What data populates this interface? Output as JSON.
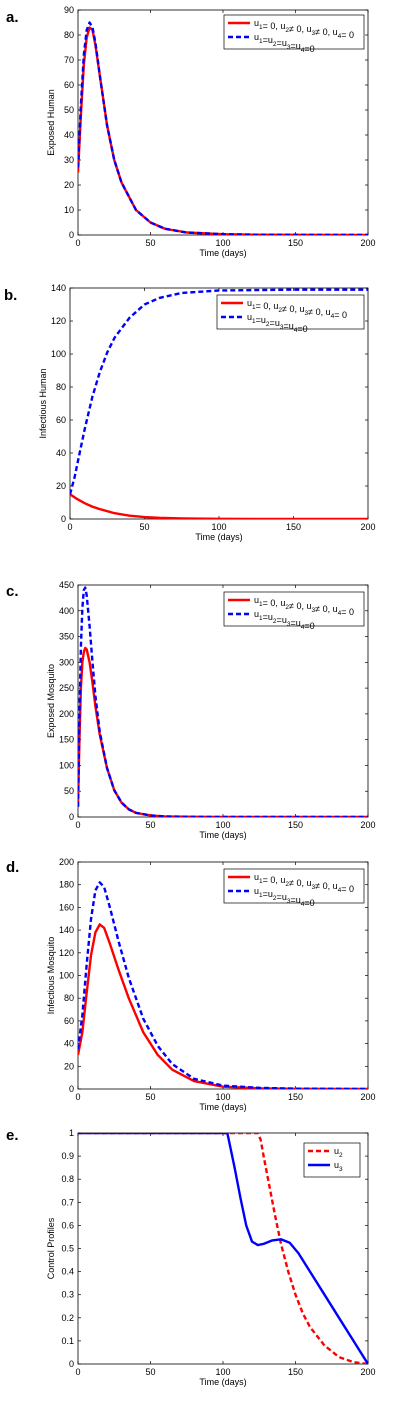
{
  "chart_data": [
    {
      "type": "line",
      "panel_label": "a.",
      "xlabel": "Time (days)",
      "ylabel": "Exposed Human",
      "xlim": [
        0,
        200
      ],
      "ylim": [
        0,
        90
      ],
      "xticks": [
        0,
        50,
        100,
        150,
        200
      ],
      "yticks": [
        0,
        10,
        20,
        30,
        40,
        50,
        60,
        70,
        80,
        90
      ],
      "legend_position": "top-right",
      "series": [
        {
          "name": "u1= 0, u2≠ 0, u3≠ 0, u4= 0",
          "color": "#ff0000",
          "dash": "solid",
          "points": [
            [
              0,
              25
            ],
            [
              2,
              48
            ],
            [
              4,
              68
            ],
            [
              6,
              79
            ],
            [
              8,
              83
            ],
            [
              10,
              82
            ],
            [
              12,
              76
            ],
            [
              15,
              64
            ],
            [
              20,
              44
            ],
            [
              25,
              30
            ],
            [
              30,
              21
            ],
            [
              40,
              10
            ],
            [
              50,
              5
            ],
            [
              60,
              2.5
            ],
            [
              75,
              1
            ],
            [
              100,
              0.3
            ],
            [
              125,
              0.1
            ],
            [
              150,
              0.05
            ],
            [
              200,
              0
            ]
          ]
        },
        {
          "name": "u1=u2=u3=u4=0",
          "color": "#0000ff",
          "dash": "dashed",
          "points": [
            [
              0,
              27
            ],
            [
              2,
              52
            ],
            [
              4,
              72
            ],
            [
              6,
              82
            ],
            [
              8,
              85
            ],
            [
              10,
              83
            ],
            [
              12,
              77
            ],
            [
              15,
              64
            ],
            [
              20,
              44
            ],
            [
              25,
              30
            ],
            [
              30,
              21
            ],
            [
              40,
              10
            ],
            [
              50,
              5
            ],
            [
              60,
              2.5
            ],
            [
              75,
              1
            ],
            [
              100,
              0.3
            ],
            [
              125,
              0.1
            ],
            [
              150,
              0.05
            ],
            [
              200,
              0
            ]
          ]
        }
      ]
    },
    {
      "type": "line",
      "panel_label": "b.",
      "xlabel": "Time (days)",
      "ylabel": "Infectious Human",
      "xlim": [
        0,
        200
      ],
      "ylim": [
        0,
        140
      ],
      "xticks": [
        0,
        50,
        100,
        150,
        200
      ],
      "yticks": [
        0,
        20,
        40,
        60,
        80,
        100,
        120,
        140
      ],
      "legend_position": "top-right",
      "series": [
        {
          "name": "u1= 0, u2≠ 0, u3≠ 0, u4= 0",
          "color": "#ff0000",
          "dash": "solid",
          "points": [
            [
              0,
              15
            ],
            [
              5,
              12
            ],
            [
              10,
              9.5
            ],
            [
              15,
              7.5
            ],
            [
              20,
              6
            ],
            [
              30,
              3.5
            ],
            [
              40,
              2
            ],
            [
              50,
              1.2
            ],
            [
              60,
              0.7
            ],
            [
              75,
              0.3
            ],
            [
              100,
              0.1
            ],
            [
              150,
              0
            ],
            [
              200,
              0
            ]
          ]
        },
        {
          "name": "u1=u2=u3=u4=0",
          "color": "#0000ff",
          "dash": "dashed",
          "points": [
            [
              0,
              15
            ],
            [
              3,
              25
            ],
            [
              6,
              38
            ],
            [
              10,
              55
            ],
            [
              15,
              74
            ],
            [
              20,
              89
            ],
            [
              25,
              101
            ],
            [
              30,
              110
            ],
            [
              40,
              122
            ],
            [
              50,
              130
            ],
            [
              60,
              134
            ],
            [
              75,
              137
            ],
            [
              100,
              138.5
            ],
            [
              150,
              139
            ],
            [
              200,
              139
            ]
          ]
        }
      ]
    },
    {
      "type": "line",
      "panel_label": "c.",
      "xlabel": "Time (days)",
      "ylabel": "Exposed Mosquito",
      "xlim": [
        0,
        200
      ],
      "ylim": [
        0,
        450
      ],
      "xticks": [
        0,
        50,
        100,
        150,
        200
      ],
      "yticks": [
        0,
        50,
        100,
        150,
        200,
        250,
        300,
        350,
        400,
        450
      ],
      "legend_position": "top-right",
      "series": [
        {
          "name": "u1= 0, u2≠ 0, u3≠ 0, u4= 0",
          "color": "#ff0000",
          "dash": "solid",
          "points": [
            [
              0,
              20
            ],
            [
              1,
              150
            ],
            [
              2,
              250
            ],
            [
              3,
              300
            ],
            [
              4,
              320
            ],
            [
              5,
              328
            ],
            [
              6,
              325
            ],
            [
              8,
              300
            ],
            [
              10,
              260
            ],
            [
              12,
              215
            ],
            [
              15,
              160
            ],
            [
              20,
              95
            ],
            [
              25,
              52
            ],
            [
              30,
              28
            ],
            [
              35,
              15
            ],
            [
              40,
              8
            ],
            [
              50,
              3
            ],
            [
              60,
              1
            ],
            [
              80,
              0.3
            ],
            [
              100,
              0
            ],
            [
              200,
              0
            ]
          ]
        },
        {
          "name": "u1=u2=u3=u4=0",
          "color": "#0000ff",
          "dash": "dashed",
          "points": [
            [
              0,
              20
            ],
            [
              1,
              200
            ],
            [
              2,
              330
            ],
            [
              3,
              405
            ],
            [
              4,
              440
            ],
            [
              5,
              445
            ],
            [
              6,
              430
            ],
            [
              8,
              370
            ],
            [
              10,
              300
            ],
            [
              12,
              235
            ],
            [
              15,
              165
            ],
            [
              20,
              95
            ],
            [
              25,
              52
            ],
            [
              30,
              28
            ],
            [
              35,
              15
            ],
            [
              40,
              8
            ],
            [
              50,
              3
            ],
            [
              60,
              1
            ],
            [
              80,
              0.3
            ],
            [
              100,
              0
            ],
            [
              200,
              0
            ]
          ]
        }
      ]
    },
    {
      "type": "line",
      "panel_label": "d.",
      "xlabel": "Time (days)",
      "ylabel": "Infectious Mosquito",
      "xlim": [
        0,
        200
      ],
      "ylim": [
        0,
        200
      ],
      "xticks": [
        0,
        50,
        100,
        150,
        200
      ],
      "yticks": [
        0,
        20,
        40,
        60,
        80,
        100,
        120,
        140,
        160,
        180,
        200
      ],
      "legend_position": "top-right",
      "series": [
        {
          "name": "u1= 0, u2≠ 0, u3≠ 0, u4= 0",
          "color": "#ff0000",
          "dash": "solid",
          "points": [
            [
              0,
              30
            ],
            [
              3,
              50
            ],
            [
              6,
              85
            ],
            [
              9,
              118
            ],
            [
              12,
              138
            ],
            [
              15,
              145
            ],
            [
              18,
              142
            ],
            [
              22,
              128
            ],
            [
              28,
              105
            ],
            [
              35,
              80
            ],
            [
              45,
              50
            ],
            [
              55,
              30
            ],
            [
              65,
              17
            ],
            [
              80,
              7
            ],
            [
              100,
              2
            ],
            [
              125,
              0.6
            ],
            [
              150,
              0.2
            ],
            [
              200,
              0
            ]
          ]
        },
        {
          "name": "u1=u2=u3=u4=0",
          "color": "#0000ff",
          "dash": "dashed",
          "points": [
            [
              0,
              35
            ],
            [
              3,
              65
            ],
            [
              6,
              110
            ],
            [
              9,
              150
            ],
            [
              12,
              175
            ],
            [
              15,
              182
            ],
            [
              18,
              178
            ],
            [
              22,
              160
            ],
            [
              28,
              130
            ],
            [
              35,
              98
            ],
            [
              45,
              62
            ],
            [
              55,
              38
            ],
            [
              65,
              22
            ],
            [
              80,
              9
            ],
            [
              100,
              3
            ],
            [
              125,
              1
            ],
            [
              150,
              0.3
            ],
            [
              200,
              0
            ]
          ]
        }
      ]
    },
    {
      "type": "line",
      "panel_label": "e.",
      "xlabel": "Time (days)",
      "ylabel": "Control Profiles",
      "xlim": [
        0,
        200
      ],
      "ylim": [
        0,
        1
      ],
      "xticks": [
        0,
        50,
        100,
        150,
        200
      ],
      "yticks": [
        0,
        0.1,
        0.2,
        0.3,
        0.4,
        0.5,
        0.6,
        0.7,
        0.8,
        0.9,
        1
      ],
      "legend_position": "top-right",
      "series": [
        {
          "name": "u2",
          "color": "#ff0000",
          "dash": "dashed",
          "points": [
            [
              0,
              1
            ],
            [
              100,
              1
            ],
            [
              120,
              1
            ],
            [
              124,
              1
            ],
            [
              126,
              0.97
            ],
            [
              128,
              0.9
            ],
            [
              132,
              0.77
            ],
            [
              136,
              0.64
            ],
            [
              140,
              0.52
            ],
            [
              145,
              0.4
            ],
            [
              150,
              0.3
            ],
            [
              155,
              0.22
            ],
            [
              160,
              0.16
            ],
            [
              170,
              0.08
            ],
            [
              180,
              0.03
            ],
            [
              190,
              0.008
            ],
            [
              200,
              0
            ]
          ]
        },
        {
          "name": "u3",
          "color": "#0000ff",
          "dash": "solid",
          "points": [
            [
              0,
              1
            ],
            [
              103,
              1
            ],
            [
              104,
              0.97
            ],
            [
              108,
              0.85
            ],
            [
              112,
              0.72
            ],
            [
              116,
              0.6
            ],
            [
              120,
              0.53
            ],
            [
              124,
              0.515
            ],
            [
              128,
              0.52
            ],
            [
              134,
              0.535
            ],
            [
              140,
              0.54
            ],
            [
              146,
              0.525
            ],
            [
              152,
              0.48
            ],
            [
              160,
              0.4
            ],
            [
              170,
              0.3
            ],
            [
              180,
              0.2
            ],
            [
              190,
              0.1
            ],
            [
              200,
              0
            ]
          ]
        }
      ]
    }
  ]
}
